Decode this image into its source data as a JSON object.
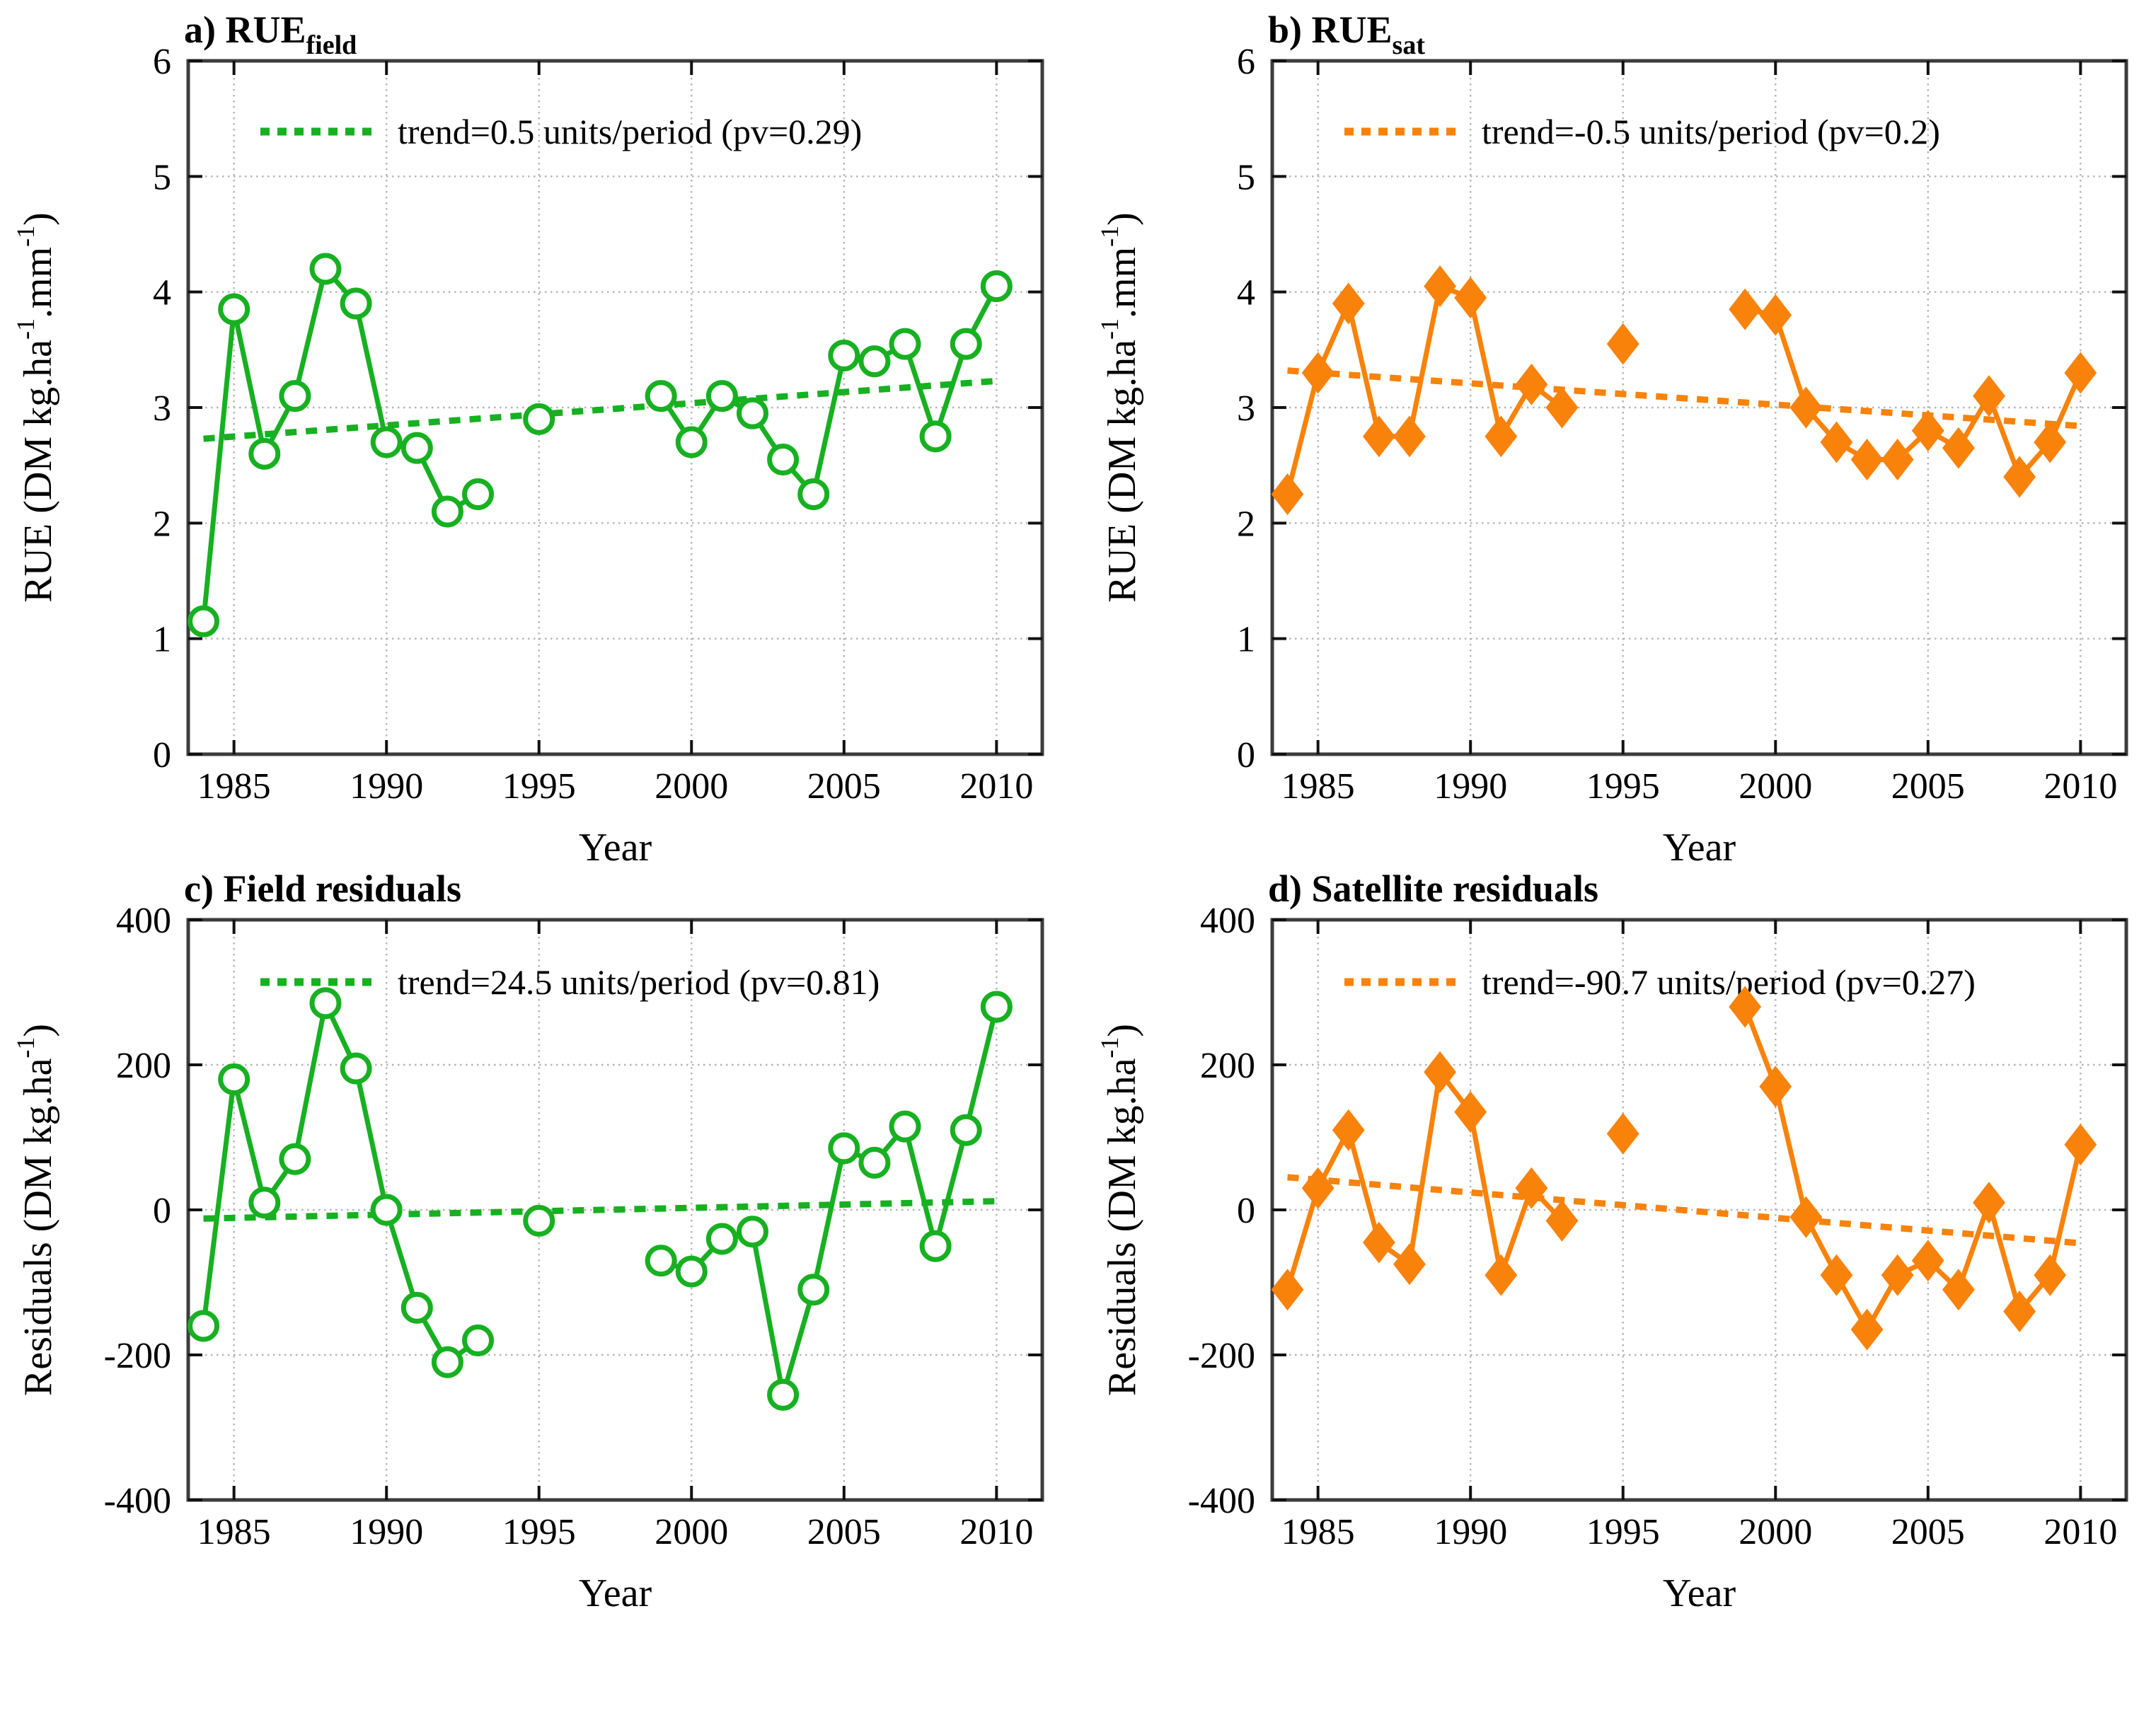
{
  "page": {
    "background": "#ffffff"
  },
  "colors": {
    "field_green": "#17B021",
    "sat_orange": "#F8820A",
    "axis_frame": "#3C3C3C",
    "tick": "#111111",
    "grid": "#B5B5B5",
    "text": "#000000",
    "open_marker_face": "#FFFFFF"
  },
  "x_axis": {
    "label": "Year",
    "ticks": [
      1985,
      1990,
      1995,
      2000,
      2005,
      2010
    ],
    "range": [
      1983.5,
      2011.5
    ]
  },
  "chart_data": [
    {
      "id": "a",
      "type": "line",
      "title_parts": [
        [
          "t",
          "a) RUE"
        ],
        [
          "sub",
          "field"
        ]
      ],
      "legend": "trend=0.5 units/period (pv=0.29)",
      "color_key": "field_green",
      "marker": "open-circle",
      "ylabel_parts": [
        [
          "t",
          "RUE (DM kg.ha"
        ],
        [
          "sup",
          "-1"
        ],
        [
          "t",
          ".mm"
        ],
        [
          "sup",
          "-1"
        ],
        [
          "t",
          ")"
        ]
      ],
      "ylim": [
        0,
        6
      ],
      "yticks": [
        0,
        1,
        2,
        3,
        4,
        5,
        6
      ],
      "x": [
        1984,
        1985,
        1986,
        1987,
        1988,
        1989,
        1990,
        1991,
        1992,
        1993,
        1995,
        1999,
        2000,
        2001,
        2002,
        2003,
        2004,
        2005,
        2006,
        2007,
        2008,
        2009,
        2010
      ],
      "y": [
        1.15,
        3.85,
        2.6,
        3.1,
        4.2,
        3.9,
        2.7,
        2.65,
        2.1,
        2.25,
        2.9,
        3.1,
        2.7,
        3.1,
        2.95,
        2.55,
        2.25,
        3.45,
        3.4,
        3.55,
        2.75,
        3.55,
        4.05
      ],
      "trend": {
        "x": [
          1984,
          2010
        ],
        "y": [
          2.73,
          3.23
        ]
      }
    },
    {
      "id": "b",
      "type": "line",
      "title_parts": [
        [
          "t",
          "b) RUE"
        ],
        [
          "sub",
          "sat"
        ]
      ],
      "legend": "trend=-0.5 units/period (pv=0.2)",
      "color_key": "sat_orange",
      "marker": "diamond",
      "ylabel_parts": [
        [
          "t",
          "RUE (DM kg.ha"
        ],
        [
          "sup",
          "-1"
        ],
        [
          "t",
          ".mm"
        ],
        [
          "sup",
          "-1"
        ],
        [
          "t",
          ")"
        ]
      ],
      "ylim": [
        0,
        6
      ],
      "yticks": [
        0,
        1,
        2,
        3,
        4,
        5,
        6
      ],
      "x": [
        1984,
        1985,
        1986,
        1987,
        1988,
        1989,
        1990,
        1991,
        1992,
        1993,
        1995,
        1999,
        2000,
        2001,
        2002,
        2003,
        2004,
        2005,
        2006,
        2007,
        2008,
        2009,
        2010
      ],
      "y": [
        2.25,
        3.3,
        3.9,
        2.75,
        2.75,
        4.05,
        3.95,
        2.75,
        3.2,
        3.0,
        3.55,
        3.85,
        3.8,
        3.0,
        2.7,
        2.55,
        2.55,
        2.8,
        2.65,
        3.1,
        2.4,
        2.7,
        3.3
      ],
      "trend": {
        "x": [
          1984,
          2010
        ],
        "y": [
          3.32,
          2.84
        ]
      }
    },
    {
      "id": "c",
      "type": "line",
      "title_parts": [
        [
          "t",
          "c) Field residuals"
        ]
      ],
      "legend": "trend=24.5 units/period (pv=0.81)",
      "color_key": "field_green",
      "marker": "open-circle",
      "ylabel_parts": [
        [
          "t",
          "Residuals (DM kg.ha"
        ],
        [
          "sup",
          "-1"
        ],
        [
          "t",
          ")"
        ]
      ],
      "ylim": [
        -400,
        400
      ],
      "yticks": [
        -400,
        -200,
        0,
        200,
        400
      ],
      "x": [
        1984,
        1985,
        1986,
        1987,
        1988,
        1989,
        1990,
        1991,
        1992,
        1993,
        1995,
        1999,
        2000,
        2001,
        2002,
        2003,
        2004,
        2005,
        2006,
        2007,
        2008,
        2009,
        2010
      ],
      "y": [
        -160,
        180,
        10,
        70,
        285,
        195,
        0,
        -135,
        -210,
        -180,
        -15,
        -70,
        -85,
        -40,
        -30,
        -255,
        -110,
        85,
        65,
        115,
        -50,
        110,
        280
      ],
      "trend": {
        "x": [
          1984,
          2010
        ],
        "y": [
          -12,
          12
        ]
      }
    },
    {
      "id": "d",
      "type": "line",
      "title_parts": [
        [
          "t",
          "d) Satellite residuals"
        ]
      ],
      "legend": "trend=-90.7 units/period (pv=0.27)",
      "color_key": "sat_orange",
      "marker": "diamond",
      "ylabel_parts": [
        [
          "t",
          "Residuals (DM kg.ha"
        ],
        [
          "sup",
          "-1"
        ],
        [
          "t",
          ")"
        ]
      ],
      "ylim": [
        -400,
        400
      ],
      "yticks": [
        -400,
        -200,
        0,
        200,
        400
      ],
      "x": [
        1984,
        1985,
        1986,
        1987,
        1988,
        1989,
        1990,
        1991,
        1992,
        1993,
        1995,
        1999,
        2000,
        2001,
        2002,
        2003,
        2004,
        2005,
        2006,
        2007,
        2008,
        2009,
        2010
      ],
      "y": [
        -110,
        30,
        110,
        -45,
        -75,
        190,
        135,
        -90,
        30,
        -15,
        105,
        280,
        170,
        -10,
        -90,
        -165,
        -90,
        -70,
        -110,
        10,
        -140,
        -90,
        90
      ],
      "trend": {
        "x": [
          1984,
          2010
        ],
        "y": [
          45,
          -46
        ]
      }
    }
  ]
}
